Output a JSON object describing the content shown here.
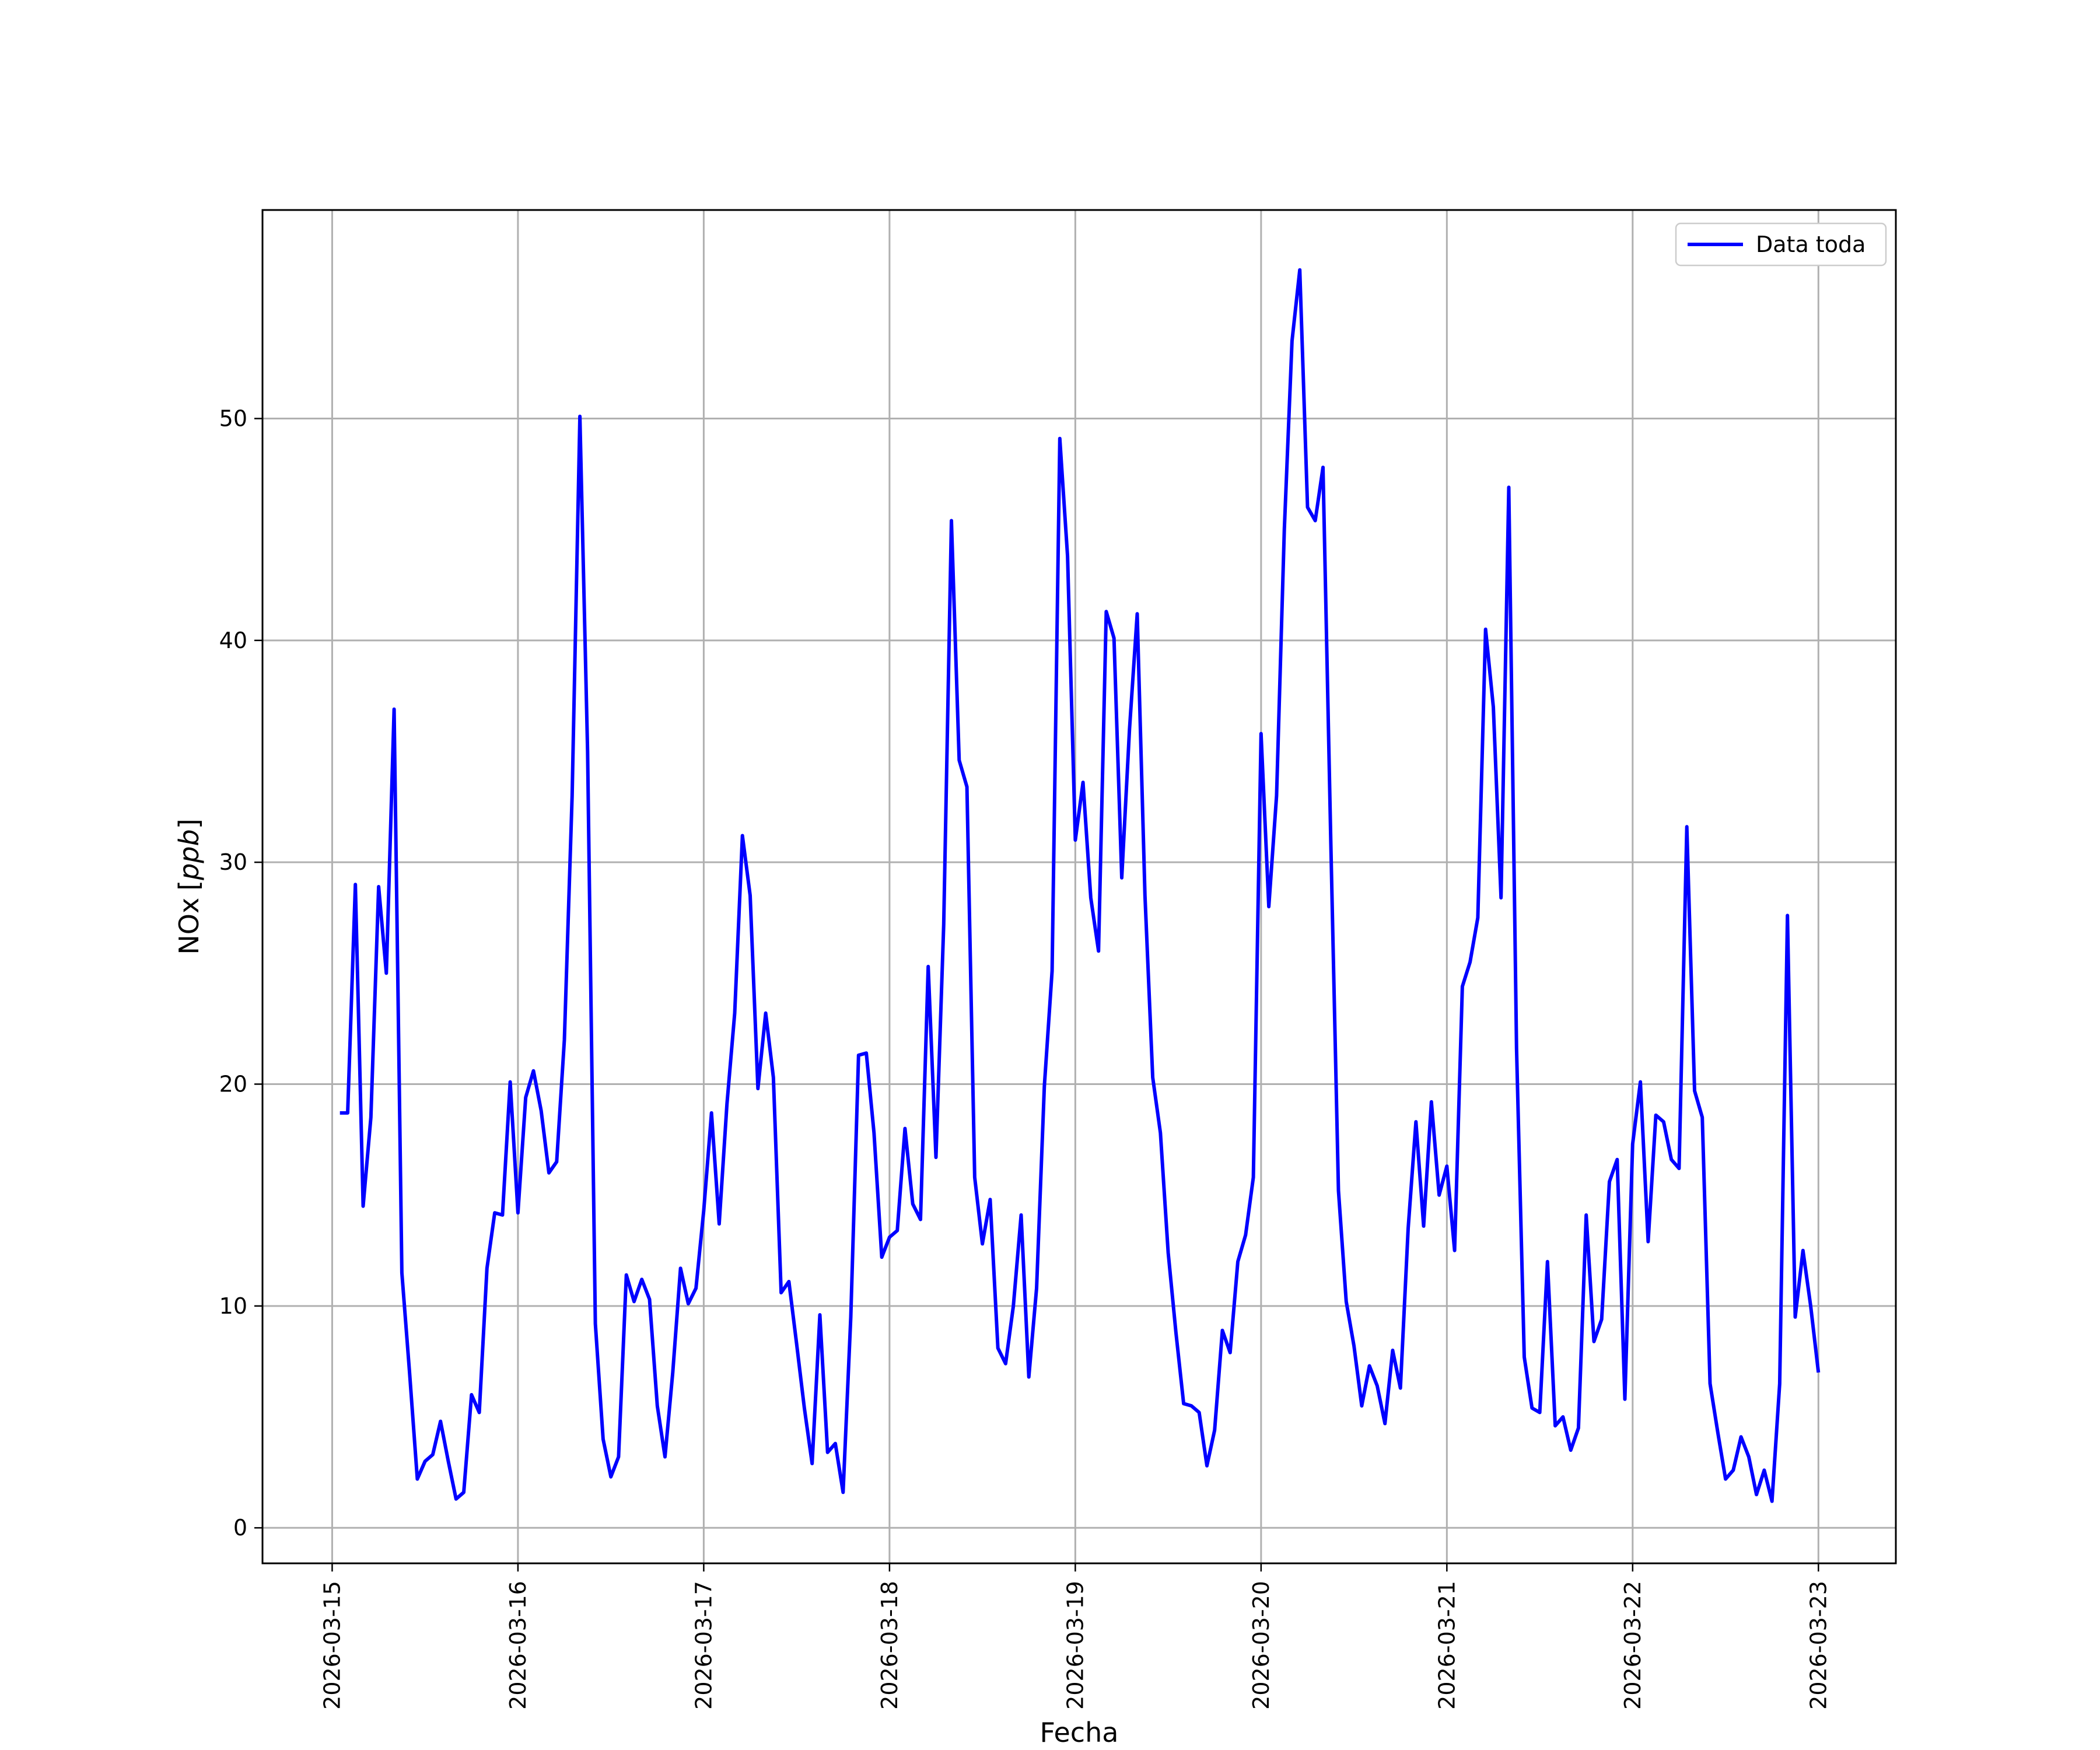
{
  "chart_data": {
    "type": "line",
    "xlabel": "Fecha",
    "ylabel_main": "NOx",
    "ylabel_unit": "ppb",
    "x_ticks": [
      "2026-03-15",
      "2026-03-16",
      "2026-03-17",
      "2026-03-18",
      "2026-03-19",
      "2026-03-20",
      "2026-03-21",
      "2026-03-22",
      "2026-03-23"
    ],
    "y_ticks": [
      0,
      10,
      20,
      30,
      40,
      50
    ],
    "xlim": [
      "2026-03-14T15:00",
      "2026-03-23T10:00"
    ],
    "ylim": [
      -1.6,
      59.4
    ],
    "grid": true,
    "legend_position": "top-right",
    "series": [
      {
        "name": "Data toda",
        "color": "#0000ff",
        "x": [
          "2026-03-15T01:00",
          "2026-03-15T02:00",
          "2026-03-15T03:00",
          "2026-03-15T04:00",
          "2026-03-15T05:00",
          "2026-03-15T06:00",
          "2026-03-15T07:00",
          "2026-03-15T08:00",
          "2026-03-15T09:00",
          "2026-03-15T10:00",
          "2026-03-15T11:00",
          "2026-03-15T12:00",
          "2026-03-15T13:00",
          "2026-03-15T14:00",
          "2026-03-15T15:00",
          "2026-03-15T16:00",
          "2026-03-15T17:00",
          "2026-03-15T18:00",
          "2026-03-15T19:00",
          "2026-03-15T20:00",
          "2026-03-15T21:00",
          "2026-03-15T22:00",
          "2026-03-15T23:00",
          "2026-03-16T00:00",
          "2026-03-16T01:00",
          "2026-03-16T02:00",
          "2026-03-16T03:00",
          "2026-03-16T04:00",
          "2026-03-16T05:00",
          "2026-03-16T06:00",
          "2026-03-16T07:00",
          "2026-03-16T08:00",
          "2026-03-16T09:00",
          "2026-03-16T10:00",
          "2026-03-16T11:00",
          "2026-03-16T12:00",
          "2026-03-16T13:00",
          "2026-03-16T14:00",
          "2026-03-16T15:00",
          "2026-03-16T16:00",
          "2026-03-16T17:00",
          "2026-03-16T18:00",
          "2026-03-16T19:00",
          "2026-03-16T20:00",
          "2026-03-16T21:00",
          "2026-03-16T22:00",
          "2026-03-16T23:00",
          "2026-03-17T00:00",
          "2026-03-17T01:00",
          "2026-03-17T02:00",
          "2026-03-17T03:00",
          "2026-03-17T04:00",
          "2026-03-17T05:00",
          "2026-03-17T06:00",
          "2026-03-17T07:00",
          "2026-03-17T08:00",
          "2026-03-17T09:00",
          "2026-03-17T10:00",
          "2026-03-17T11:00",
          "2026-03-17T12:00",
          "2026-03-17T13:00",
          "2026-03-17T14:00",
          "2026-03-17T15:00",
          "2026-03-17T16:00",
          "2026-03-17T17:00",
          "2026-03-17T18:00",
          "2026-03-17T19:00",
          "2026-03-17T20:00",
          "2026-03-17T21:00",
          "2026-03-17T22:00",
          "2026-03-17T23:00",
          "2026-03-18T00:00",
          "2026-03-18T01:00",
          "2026-03-18T02:00",
          "2026-03-18T03:00",
          "2026-03-18T04:00",
          "2026-03-18T05:00",
          "2026-03-18T06:00",
          "2026-03-18T07:00",
          "2026-03-18T08:00",
          "2026-03-18T09:00",
          "2026-03-18T10:00",
          "2026-03-18T11:00",
          "2026-03-18T12:00",
          "2026-03-18T13:00",
          "2026-03-18T14:00",
          "2026-03-18T15:00",
          "2026-03-18T16:00",
          "2026-03-18T17:00",
          "2026-03-18T18:00",
          "2026-03-18T19:00",
          "2026-03-18T20:00",
          "2026-03-18T21:00",
          "2026-03-18T22:00",
          "2026-03-18T23:00",
          "2026-03-19T00:00",
          "2026-03-19T01:00",
          "2026-03-19T02:00",
          "2026-03-19T03:00",
          "2026-03-19T04:00",
          "2026-03-19T05:00",
          "2026-03-19T06:00",
          "2026-03-19T07:00",
          "2026-03-19T08:00",
          "2026-03-19T09:00",
          "2026-03-19T10:00",
          "2026-03-19T11:00",
          "2026-03-19T12:00",
          "2026-03-19T13:00",
          "2026-03-19T14:00",
          "2026-03-19T15:00",
          "2026-03-19T16:00",
          "2026-03-19T17:00",
          "2026-03-19T18:00",
          "2026-03-19T19:00",
          "2026-03-19T20:00",
          "2026-03-19T21:00",
          "2026-03-19T22:00",
          "2026-03-19T23:00",
          "2026-03-20T00:00",
          "2026-03-20T01:00",
          "2026-03-20T02:00",
          "2026-03-20T03:00",
          "2026-03-20T04:00",
          "2026-03-20T05:00",
          "2026-03-20T06:00",
          "2026-03-20T07:00",
          "2026-03-20T08:00",
          "2026-03-20T09:00",
          "2026-03-20T10:00",
          "2026-03-20T11:00",
          "2026-03-20T12:00",
          "2026-03-20T13:00",
          "2026-03-20T14:00",
          "2026-03-20T15:00",
          "2026-03-20T16:00",
          "2026-03-20T17:00",
          "2026-03-20T18:00",
          "2026-03-20T19:00",
          "2026-03-20T20:00",
          "2026-03-20T21:00",
          "2026-03-20T22:00",
          "2026-03-20T23:00",
          "2026-03-21T00:00",
          "2026-03-21T01:00",
          "2026-03-21T02:00",
          "2026-03-21T03:00",
          "2026-03-21T04:00",
          "2026-03-21T05:00",
          "2026-03-21T06:00",
          "2026-03-21T07:00",
          "2026-03-21T08:00",
          "2026-03-21T09:00",
          "2026-03-21T10:00",
          "2026-03-21T11:00",
          "2026-03-21T12:00",
          "2026-03-21T13:00",
          "2026-03-21T14:00",
          "2026-03-21T15:00",
          "2026-03-21T16:00",
          "2026-03-21T17:00",
          "2026-03-21T18:00",
          "2026-03-21T19:00",
          "2026-03-21T20:00",
          "2026-03-21T21:00",
          "2026-03-21T22:00",
          "2026-03-21T23:00",
          "2026-03-22T00:00",
          "2026-03-22T01:00",
          "2026-03-22T02:00",
          "2026-03-22T03:00",
          "2026-03-22T04:00",
          "2026-03-22T05:00",
          "2026-03-22T06:00",
          "2026-03-22T07:00",
          "2026-03-22T08:00",
          "2026-03-22T09:00",
          "2026-03-22T10:00",
          "2026-03-22T11:00",
          "2026-03-22T12:00",
          "2026-03-22T13:00",
          "2026-03-22T14:00",
          "2026-03-22T15:00",
          "2026-03-22T16:00",
          "2026-03-22T17:00",
          "2026-03-22T18:00",
          "2026-03-22T19:00",
          "2026-03-22T20:00",
          "2026-03-22T21:00",
          "2026-03-22T22:00",
          "2026-03-22T23:00",
          "2026-03-23T00:00"
        ],
        "values": [
          18.7,
          18.7,
          29.0,
          14.5,
          18.5,
          28.9,
          25.0,
          36.9,
          11.5,
          7.0,
          2.2,
          3.0,
          3.3,
          4.8,
          3.0,
          1.3,
          1.6,
          6.0,
          5.2,
          11.7,
          14.2,
          14.1,
          20.1,
          14.2,
          19.4,
          20.6,
          18.8,
          16.0,
          16.5,
          22.0,
          33.0,
          50.1,
          35.0,
          9.2,
          4.0,
          2.3,
          3.2,
          11.4,
          10.2,
          11.2,
          10.3,
          5.5,
          3.2,
          7.0,
          11.7,
          10.1,
          10.8,
          14.3,
          18.7,
          13.7,
          19.1,
          23.2,
          31.2,
          28.5,
          19.8,
          23.2,
          20.3,
          10.6,
          11.1,
          8.3,
          5.4,
          2.9,
          9.6,
          3.4,
          3.8,
          1.6,
          9.5,
          21.3,
          21.4,
          17.8,
          12.2,
          13.1,
          13.4,
          18.0,
          14.6,
          13.9,
          25.3,
          16.7,
          27.2,
          45.4,
          34.6,
          33.4,
          15.8,
          12.8,
          14.8,
          8.1,
          7.4,
          10.0,
          14.1,
          6.8,
          10.8,
          19.9,
          25.1,
          49.1,
          43.8,
          31.0,
          33.6,
          28.4,
          26.0,
          41.3,
          40.1,
          29.3,
          36.0,
          41.2,
          28.5,
          20.3,
          17.8,
          12.4,
          8.8,
          5.6,
          5.5,
          5.2,
          2.8,
          4.4,
          8.9,
          7.9,
          12.0,
          13.2,
          15.8,
          35.8,
          28.0,
          33.0,
          45.0,
          53.5,
          56.7,
          46.0,
          45.4,
          47.8,
          31.0,
          15.2,
          10.2,
          8.2,
          5.5,
          7.3,
          6.4,
          4.7,
          8.0,
          6.3,
          13.5,
          18.3,
          13.6,
          19.2,
          15.0,
          16.3,
          12.5,
          24.4,
          25.5,
          27.5,
          40.5,
          37.0,
          28.4,
          46.9,
          21.6,
          7.7,
          5.4,
          5.2,
          12.0,
          4.6,
          5.0,
          3.5,
          4.5,
          14.1,
          8.4,
          9.4,
          15.6,
          16.6,
          5.8,
          17.3,
          20.1,
          12.9,
          18.6,
          18.3,
          16.6,
          16.2,
          31.6,
          19.7,
          18.5,
          6.5,
          4.3,
          2.2,
          2.6,
          4.1,
          3.2,
          1.5,
          2.6,
          1.2,
          6.5,
          27.6,
          9.5,
          12.5,
          10.0,
          7.0
        ]
      }
    ]
  }
}
